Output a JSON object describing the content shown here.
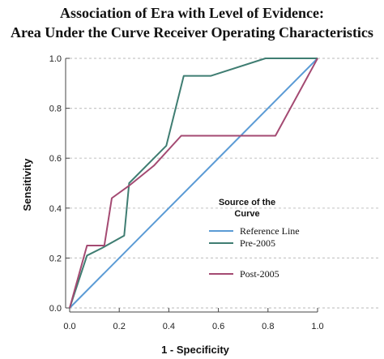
{
  "chart_data": {
    "type": "line",
    "title": "Association of Era with Level of Evidence:",
    "subtitle": "Area Under the Curve Receiver Operating Characteristics",
    "xlabel": "1 - Specificity",
    "ylabel": "Sensitivity",
    "xlim": [
      0,
      1
    ],
    "ylim": [
      0,
      1
    ],
    "x_ticks": [
      "0.0",
      "0.2",
      "0.4",
      "0.6",
      "0.8",
      "1.0"
    ],
    "y_ticks": [
      "0.0",
      "0.2",
      "0.4",
      "0.6",
      "0.8",
      "1.0"
    ],
    "grid": "horizontal dotted",
    "legend": {
      "title_line1": "Source of the",
      "title_line2": "Curve",
      "placement": "right-center"
    },
    "series": [
      {
        "name": "Reference Line",
        "color": "#5b9bd5",
        "x": [
          0.0,
          1.0
        ],
        "y": [
          0.0,
          1.0
        ]
      },
      {
        "name": "Pre-2005",
        "color": "#3f7d72",
        "x": [
          0.0,
          0.07,
          0.13,
          0.22,
          0.24,
          0.39,
          0.46,
          0.57,
          0.79,
          1.0
        ],
        "y": [
          0.0,
          0.21,
          0.24,
          0.29,
          0.5,
          0.65,
          0.93,
          0.93,
          1.0,
          1.0
        ]
      },
      {
        "name": "Post-2005",
        "color": "#a44a72",
        "x": [
          0.0,
          0.07,
          0.14,
          0.17,
          0.24,
          0.34,
          0.45,
          0.83,
          1.0
        ],
        "y": [
          0.0,
          0.25,
          0.25,
          0.44,
          0.49,
          0.57,
          0.69,
          0.69,
          1.0
        ]
      }
    ]
  }
}
